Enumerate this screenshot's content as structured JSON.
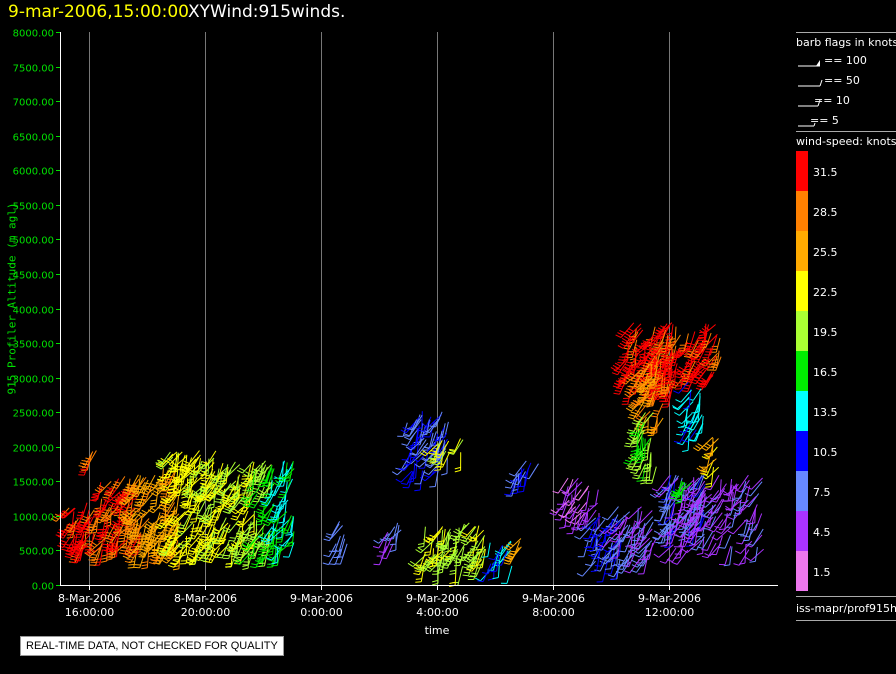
{
  "header": {
    "date": "9-mar-2006,15:00:00",
    "name": "XYWind:915winds."
  },
  "notice": "REAL-TIME DATA, NOT CHECKED FOR QUALITY",
  "legend": {
    "barb_title": "barb flags in knots",
    "barb_items": [
      "== 100",
      "== 50",
      "== 10",
      "== 5"
    ],
    "speed_title": "wind-speed: knots",
    "speed_levels": [
      "31.5",
      "28.5",
      "25.5",
      "22.5",
      "19.5",
      "16.5",
      "13.5",
      "10.5",
      "7.5",
      "4.5",
      "1.5"
    ],
    "speed_colors": [
      "#ff0000",
      "#ff8000",
      "#ffaa00",
      "#ffff00",
      "#aaff33",
      "#00ee00",
      "#00ffff",
      "#0000ff",
      "#6688ff",
      "#aa33ff",
      "#ee77ee"
    ],
    "source": "iss-mapr/prof915h"
  },
  "chart_data": {
    "type": "scatter",
    "title": "9-mar-2006,15:00:00  XYWind:915winds.",
    "xlabel": "time",
    "ylabel": "915 Profiler Altitude (m agl)",
    "ylim": [
      0,
      8000
    ],
    "yticks": [
      "0.00",
      "500.00",
      "1000.00",
      "1500.00",
      "2000.00",
      "2500.00",
      "3000.00",
      "3500.00",
      "4000.00",
      "4500.00",
      "5000.00",
      "5500.00",
      "6000.00",
      "6500.00",
      "7000.00",
      "7500.00",
      "8000.00"
    ],
    "xlim_hours": [
      14.5,
      29.5
    ],
    "xticks": [
      {
        "hour": 16,
        "date": "8-Mar-2006",
        "time": "16:00:00"
      },
      {
        "hour": 20,
        "date": "8-Mar-2006",
        "time": "20:00:00"
      },
      {
        "hour": 24,
        "date": "9-Mar-2006",
        "time": "0:00:00"
      },
      {
        "hour": 28,
        "date": "9-Mar-2006",
        "time": "4:00:00"
      },
      {
        "hour": 32,
        "date": "9-Mar-2006",
        "time": "8:00:00"
      },
      {
        "hour": 36,
        "date": "9-Mar-2006",
        "time": "12:00:00"
      }
    ],
    "grid": "vertical",
    "clusters": [
      {
        "t0": 15.2,
        "t1": 16.4,
        "z0": 550,
        "z1": 1200,
        "speed": 31
      },
      {
        "t0": 15.9,
        "t1": 16.3,
        "z0": 1800,
        "z1": 2000,
        "speed": 29
      },
      {
        "t0": 16.4,
        "t1": 17.8,
        "z0": 500,
        "z1": 1600,
        "speed": 30
      },
      {
        "t0": 17.6,
        "t1": 19.2,
        "z0": 450,
        "z1": 1700,
        "speed": 26
      },
      {
        "t0": 18.8,
        "t1": 20.4,
        "z0": 450,
        "z1": 1950,
        "speed": 22
      },
      {
        "t0": 20.2,
        "t1": 21.8,
        "z0": 450,
        "z1": 1800,
        "speed": 21
      },
      {
        "t0": 21.6,
        "t1": 22.4,
        "z0": 480,
        "z1": 1800,
        "speed": 18
      },
      {
        "t0": 22.3,
        "t1": 23.1,
        "z0": 500,
        "z1": 1900,
        "speed": 14
      },
      {
        "t0": 24.5,
        "t1": 25.0,
        "z0": 500,
        "z1": 950,
        "speed": 8
      },
      {
        "t0": 26.2,
        "t1": 26.8,
        "z0": 550,
        "z1": 900,
        "speed": 6
      },
      {
        "t0": 26.9,
        "t1": 28.4,
        "z0": 1600,
        "z1": 2550,
        "speed": 9
      },
      {
        "t0": 28.0,
        "t1": 28.9,
        "z0": 1900,
        "z1": 2150,
        "speed": 22
      },
      {
        "t0": 27.5,
        "t1": 29.7,
        "z0": 250,
        "z1": 900,
        "speed": 20
      },
      {
        "t0": 29.8,
        "t1": 30.6,
        "z0": 250,
        "z1": 650,
        "speed": 13
      },
      {
        "t0": 30.7,
        "t1": 31.6,
        "z0": 1500,
        "z1": 1800,
        "speed": 9
      },
      {
        "t0": 30.8,
        "t1": 31.3,
        "z0": 500,
        "z1": 700,
        "speed": 27
      },
      {
        "t0": 32.4,
        "t1": 33.6,
        "z0": 1000,
        "z1": 1550,
        "speed": 4
      },
      {
        "t0": 33.2,
        "t1": 34.4,
        "z0": 300,
        "z1": 1000,
        "speed": 10
      },
      {
        "t0": 34.2,
        "t1": 35.6,
        "z0": 300,
        "z1": 1150,
        "speed": 6
      },
      {
        "t0": 34.5,
        "t1": 36.2,
        "z0": 2800,
        "z1": 3800,
        "speed": 31
      },
      {
        "t0": 35.5,
        "t1": 37.8,
        "z0": 3000,
        "z1": 3800,
        "speed": 31
      },
      {
        "t0": 35.0,
        "t1": 35.8,
        "z0": 2400,
        "z1": 3200,
        "speed": 27
      },
      {
        "t0": 34.9,
        "t1": 35.7,
        "z0": 1700,
        "z1": 2500,
        "speed": 19
      },
      {
        "t0": 36.5,
        "t1": 37.2,
        "z0": 2200,
        "z1": 3000,
        "speed": 13
      },
      {
        "t0": 37.4,
        "t1": 37.8,
        "z0": 1700,
        "z1": 2200,
        "speed": 24
      },
      {
        "t0": 35.9,
        "t1": 37.3,
        "z0": 800,
        "z1": 1600,
        "speed": 8
      },
      {
        "t0": 36.0,
        "t1": 39.3,
        "z0": 500,
        "z1": 1600,
        "speed": 5
      },
      {
        "t0": 36.3,
        "t1": 36.9,
        "z0": 1350,
        "z1": 1550,
        "speed": 17
      }
    ]
  }
}
